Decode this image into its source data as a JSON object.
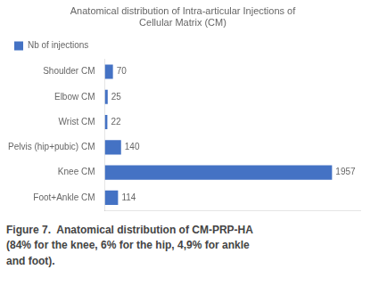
{
  "chart_data": {
    "type": "bar",
    "orientation": "horizontal",
    "title": "Anatomical distribution of Intra-articular Injections of\nCellular Matrix (CM)",
    "categories": [
      "Shoulder CM",
      "Elbow CM",
      "Wrist CM",
      "Pelvis (hip+pubic) CM",
      "Knee CM",
      "Foot+Ankle CM"
    ],
    "series": [
      {
        "name": "Nb of injections",
        "color": "#4472C4",
        "values": [
          70,
          25,
          22,
          140,
          1957,
          114
        ]
      }
    ],
    "xlim": [
      0,
      2200
    ],
    "grid": false,
    "legend": "upper left",
    "data_labels": true,
    "tick_labels": "y",
    "annotations": [
      "Figure 7.  Anatomical distribution of CM-PRP-HA",
      "(84% for the knee, 6% for the hip, 4,9% for ankle",
      "and foot)."
    ]
  }
}
